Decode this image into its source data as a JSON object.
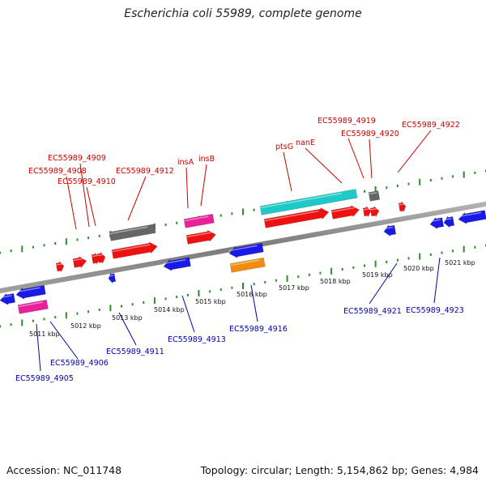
{
  "title": "Escherichia coli 55989, complete genome",
  "footer": {
    "accession": "Accession: NC_011748",
    "summary": "Topology: circular; Length: 5,154,862 bp; Genes: 4,984"
  },
  "colors": {
    "backbone": "#8c8c8c",
    "tick": "#2e8b2e",
    "label_top": "#cc0000",
    "label_bottom": "#0000aa",
    "red_gene": "#ee1111",
    "blue_gene": "#1a1ae6",
    "pink_gene": "#e8209a",
    "cyan_gene": "#1ec9c9",
    "orange_gene": "#f28c10",
    "gray_gene": "#666666"
  },
  "scale_labels": [
    "5011 kbp",
    "5012 kbp",
    "5013 kbp",
    "5014 kbp",
    "5015 kbp",
    "5016 kbp",
    "5017 kbp",
    "5018 kbp",
    "5019 kbp",
    "5020 kbp",
    "5021 kbp"
  ],
  "top_labels": [
    "EC55989_4909",
    "EC55989_4908",
    "EC55989_4910",
    "EC55989_4912",
    "insA",
    "insB",
    "ptsG",
    "nanE",
    "EC55989_4919",
    "EC55989_4920",
    "EC55989_4922"
  ],
  "bottom_labels": [
    "EC55989_4905",
    "EC55989_4906",
    "EC55989_4911",
    "EC55989_4913",
    "EC55989_4916",
    "EC55989_4921",
    "EC55989_4923"
  ]
}
